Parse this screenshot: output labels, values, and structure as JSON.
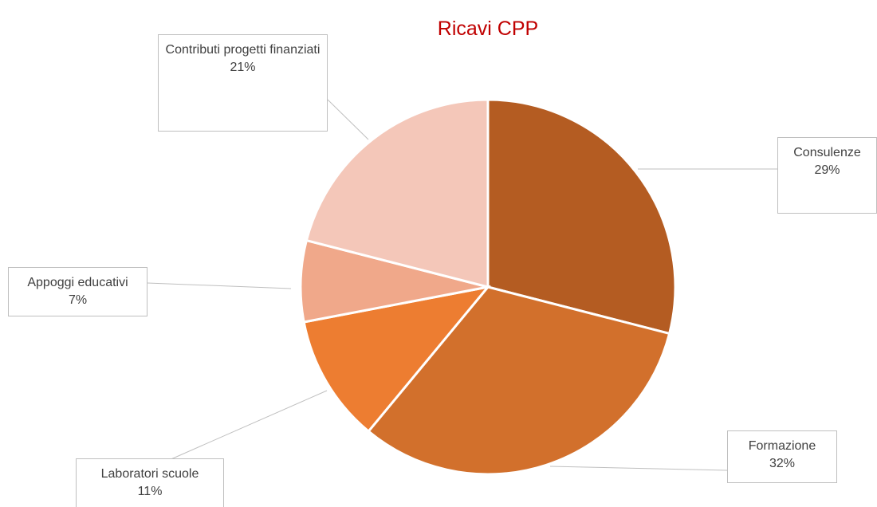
{
  "chart_data": {
    "type": "pie",
    "title": "Ricavi CPP",
    "categories": [
      "Consulenze",
      "Formazione",
      "Laboratori scuole",
      "Appoggi educativi",
      "Contributi progetti finanziati"
    ],
    "values": [
      29,
      32,
      11,
      7,
      21
    ],
    "value_labels": [
      "29%",
      "32%",
      "11%",
      "7%",
      "21%"
    ],
    "colors": [
      "#b45c22",
      "#d2702c",
      "#ed7d31",
      "#f0a88a",
      "#f4c7b9"
    ]
  }
}
